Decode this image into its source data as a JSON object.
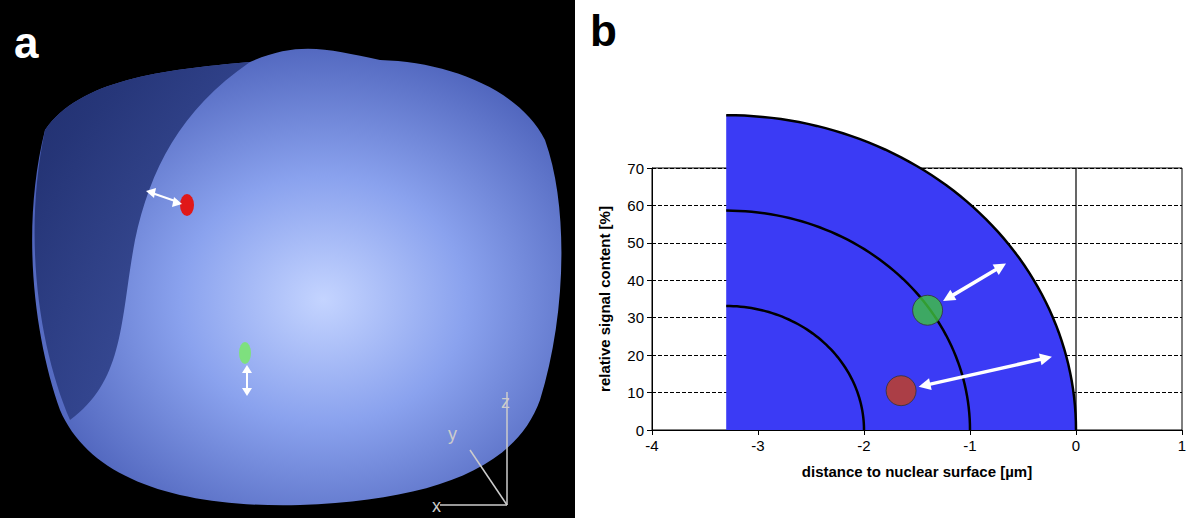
{
  "panel_a": {
    "letter": "a",
    "axis_labels": [
      "x",
      "y",
      "z"
    ]
  },
  "chart_data": {
    "type": "scatter",
    "letter": "b",
    "x_label": "distance to nuclear surface [µm]",
    "y_label": "relative signal content [%]",
    "x": [
      -1.4,
      -1.65
    ],
    "values": [
      32,
      10.5
    ],
    "colors": [
      "#3ec43e",
      "#c8401a"
    ],
    "shells": [
      0,
      -1,
      -2
    ],
    "nucleus_edge": -3.3,
    "xlim": [
      -4,
      1
    ],
    "xticks": [
      -4,
      -3,
      -2,
      -1,
      0,
      1
    ],
    "ylim": [
      0,
      70
    ],
    "yticks": [
      0,
      10,
      20,
      30,
      40,
      50,
      60,
      70
    ],
    "grid": true
  }
}
